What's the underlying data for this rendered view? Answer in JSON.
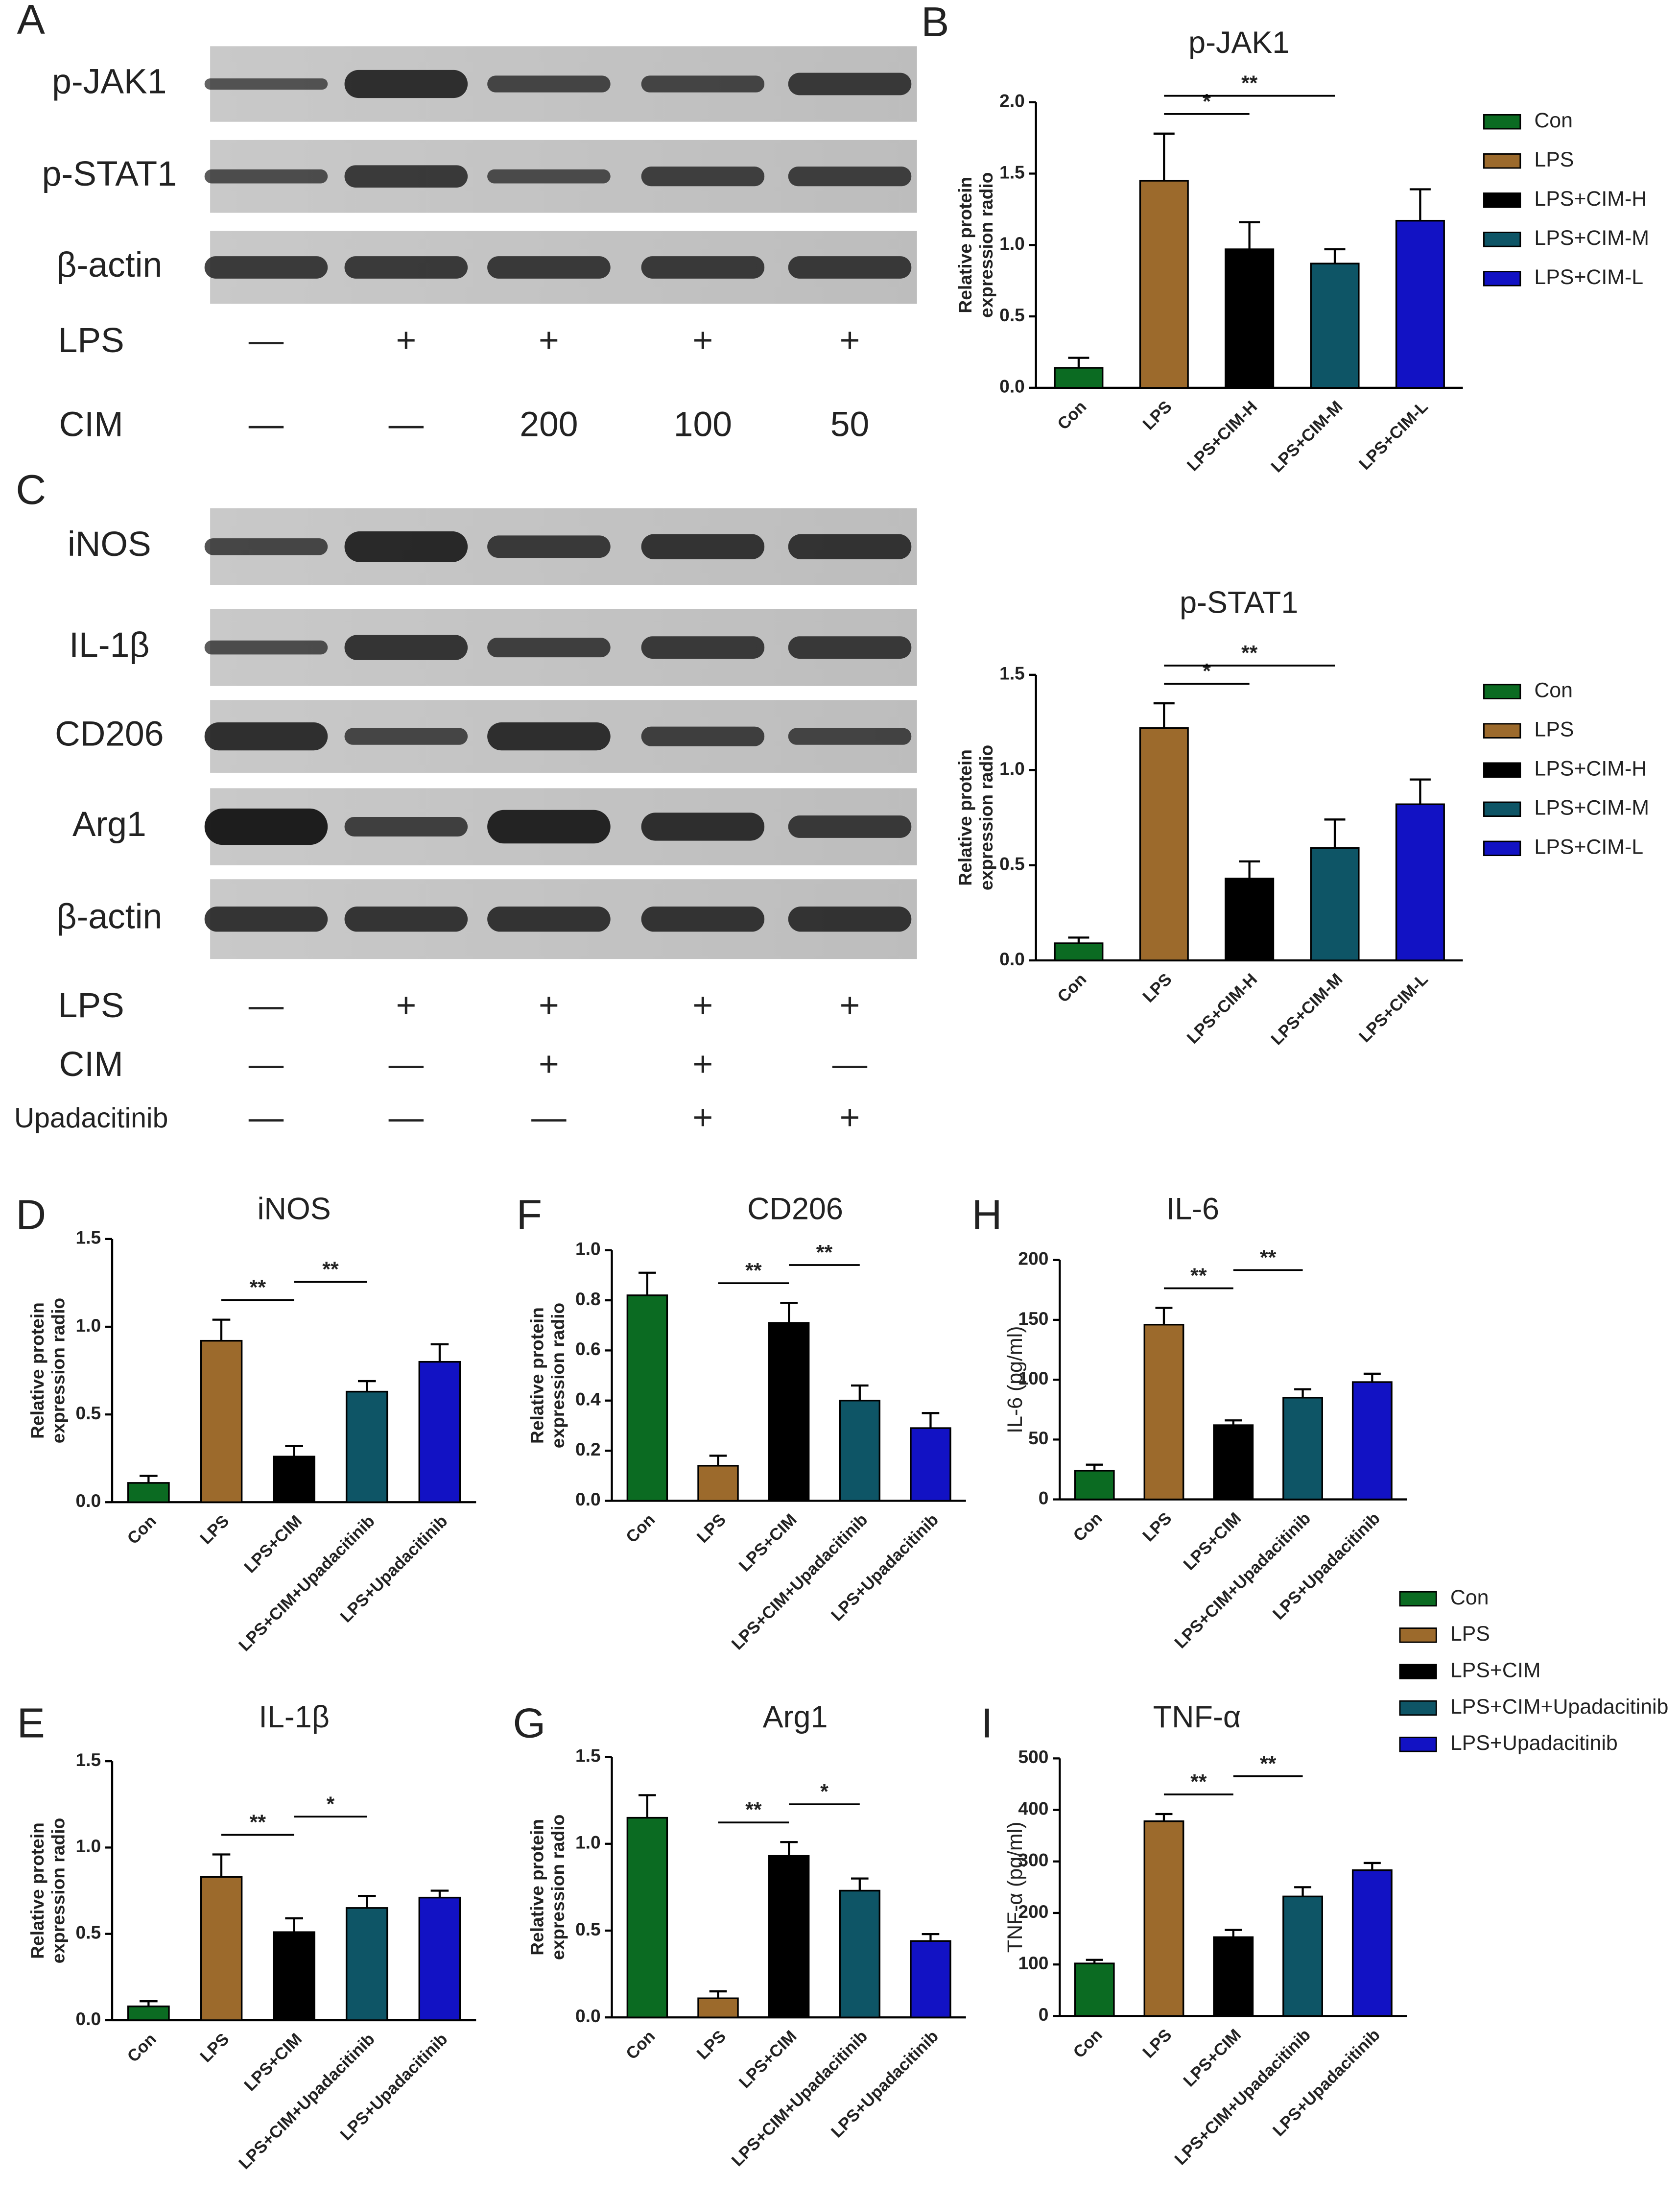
{
  "blots": [
    {
      "letter": "A",
      "rows": [
        "p-JAK1",
        "p-STAT1",
        "β-actin"
      ],
      "conditions": [
        {
          "label": "LPS",
          "lanes": [
            "—",
            "+",
            "+",
            "+",
            "+"
          ]
        },
        {
          "label": "CIM",
          "lanes": [
            "—",
            "—",
            "200",
            "100",
            "50"
          ]
        }
      ]
    },
    {
      "letter": "C",
      "rows": [
        "iNOS",
        "IL-1β",
        "CD206",
        "Arg1",
        "β-actin"
      ],
      "conditions": [
        {
          "label": "LPS",
          "lanes": [
            "—",
            "+",
            "+",
            "+",
            "+"
          ]
        },
        {
          "label": "CIM",
          "lanes": [
            "—",
            "—",
            "+",
            "+",
            "—"
          ]
        },
        {
          "label": "Upadacitinib",
          "lanes": [
            "—",
            "—",
            "—",
            "+",
            "+"
          ]
        }
      ]
    }
  ],
  "chart_data": [
    {
      "type": "bar",
      "letter": "B",
      "title": "p-JAK1",
      "ylabel": [
        "Relative protein",
        "expression radio"
      ],
      "categories": [
        "Con",
        "LPS",
        "LPS+CIM-H",
        "LPS+CIM-M",
        "LPS+CIM-L"
      ],
      "values": [
        0.14,
        1.45,
        0.97,
        0.87,
        1.17
      ],
      "errors": [
        0.07,
        0.33,
        0.19,
        0.1,
        0.22
      ],
      "colors": [
        "#0b6b22",
        "#9c6a2c",
        "#000000",
        "#0e5566",
        "#1212c4"
      ],
      "ylim": [
        0,
        2
      ],
      "yticks": [
        {
          "value": 0,
          "label": "0.0"
        },
        0.5,
        {
          "value": 1,
          "label": "1.0"
        },
        1.5,
        {
          "value": 2,
          "label": "2.0"
        }
      ],
      "annotations": [
        {
          "from": 1,
          "to": 2,
          "label": "*"
        },
        {
          "from": 1,
          "to": 3,
          "label": "**"
        }
      ],
      "legend": true
    },
    {
      "type": "bar",
      "title": "p-STAT1",
      "ylabel": [
        "Relative protein",
        "expression radio"
      ],
      "categories": [
        "Con",
        "LPS",
        "LPS+CIM-H",
        "LPS+CIM-M",
        "LPS+CIM-L"
      ],
      "values": [
        0.09,
        1.22,
        0.43,
        0.59,
        0.82
      ],
      "errors": [
        0.03,
        0.13,
        0.09,
        0.15,
        0.13
      ],
      "colors": [
        "#0b6b22",
        "#9c6a2c",
        "#000000",
        "#0e5566",
        "#1212c4"
      ],
      "ylim": [
        0,
        1.5
      ],
      "yticks": [
        {
          "value": 0,
          "label": "0.0"
        },
        0.5,
        {
          "value": 1,
          "label": "1.0"
        },
        1.5
      ],
      "annotations": [
        {
          "from": 1,
          "to": 2,
          "label": "*"
        },
        {
          "from": 1,
          "to": 3,
          "label": "**"
        }
      ],
      "legend": true
    },
    {
      "type": "bar",
      "letter": "D",
      "title": "iNOS",
      "ylabel": [
        "Relative protein",
        "expression radio"
      ],
      "categories": [
        "Con",
        "LPS",
        "LPS+CIM",
        "LPS+CIM+Upadacitinib",
        "LPS+Upadacitinib"
      ],
      "values": [
        0.11,
        0.92,
        0.26,
        0.63,
        0.8
      ],
      "errors": [
        0.04,
        0.12,
        0.06,
        0.06,
        0.1
      ],
      "colors": [
        "#0b6b22",
        "#9c6a2c",
        "#000000",
        "#0e5566",
        "#1212c4"
      ],
      "ylim": [
        0,
        1.5
      ],
      "yticks": [
        {
          "value": 0,
          "label": "0.0"
        },
        0.5,
        {
          "value": 1,
          "label": "1.0"
        },
        1.5
      ],
      "annotations": [
        {
          "from": 1,
          "to": 2,
          "label": "**"
        },
        {
          "from": 2,
          "to": 3,
          "label": "**"
        }
      ]
    },
    {
      "type": "bar",
      "letter": "F",
      "title": "CD206",
      "ylabel": [
        "Relative protein",
        "expression radio"
      ],
      "categories": [
        "Con",
        "LPS",
        "LPS+CIM",
        "LPS+CIM+Upadacitinib",
        "LPS+Upadacitinib"
      ],
      "values": [
        0.82,
        0.14,
        0.71,
        0.4,
        0.29
      ],
      "errors": [
        0.09,
        0.04,
        0.08,
        0.06,
        0.06
      ],
      "colors": [
        "#0b6b22",
        "#9c6a2c",
        "#000000",
        "#0e5566",
        "#1212c4"
      ],
      "ylim": [
        0,
        1
      ],
      "yticks": [
        {
          "value": 0,
          "label": "0.0"
        },
        0.2,
        0.4,
        0.6,
        0.8,
        {
          "value": 1,
          "label": "1.0"
        }
      ],
      "annotations": [
        {
          "from": 1,
          "to": 2,
          "label": "**"
        },
        {
          "from": 2,
          "to": 3,
          "label": "**"
        }
      ]
    },
    {
      "type": "bar",
      "letter": "H",
      "title": "IL-6",
      "ylabel": [
        "IL-6 (pg/ml)"
      ],
      "categories": [
        "Con",
        "LPS",
        "LPS+CIM",
        "LPS+CIM+Upadacitinib",
        "LPS+Upadacitinib"
      ],
      "values": [
        24,
        146,
        62,
        85,
        98
      ],
      "errors": [
        5,
        14,
        4,
        7,
        7
      ],
      "colors": [
        "#0b6b22",
        "#9c6a2c",
        "#000000",
        "#0e5566",
        "#1212c4"
      ],
      "ylim": [
        0,
        200
      ],
      "yticks": [
        0,
        50,
        100,
        150,
        200
      ],
      "annotations": [
        {
          "from": 1,
          "to": 2,
          "label": "**"
        },
        {
          "from": 2,
          "to": 3,
          "label": "**"
        }
      ]
    },
    {
      "type": "bar",
      "letter": "E",
      "title": "IL-1β",
      "ylabel": [
        "Relative protein",
        "expression radio"
      ],
      "categories": [
        "Con",
        "LPS",
        "LPS+CIM",
        "LPS+CIM+Upadacitinib",
        "LPS+Upadacitinib"
      ],
      "values": [
        0.08,
        0.83,
        0.51,
        0.65,
        0.71
      ],
      "errors": [
        0.03,
        0.13,
        0.08,
        0.07,
        0.04
      ],
      "colors": [
        "#0b6b22",
        "#9c6a2c",
        "#000000",
        "#0e5566",
        "#1212c4"
      ],
      "ylim": [
        0,
        1.5
      ],
      "yticks": [
        {
          "value": 0,
          "label": "0.0"
        },
        0.5,
        {
          "value": 1,
          "label": "1.0"
        },
        1.5
      ],
      "annotations": [
        {
          "from": 1,
          "to": 2,
          "label": "**"
        },
        {
          "from": 2,
          "to": 3,
          "label": "*"
        }
      ]
    },
    {
      "type": "bar",
      "letter": "G",
      "title": "Arg1",
      "ylabel": [
        "Relative protein",
        "expression radio"
      ],
      "categories": [
        "Con",
        "LPS",
        "LPS+CIM",
        "LPS+CIM+Upadacitinib",
        "LPS+Upadacitinib"
      ],
      "values": [
        1.15,
        0.11,
        0.93,
        0.73,
        0.44
      ],
      "errors": [
        0.13,
        0.04,
        0.08,
        0.07,
        0.04
      ],
      "colors": [
        "#0b6b22",
        "#9c6a2c",
        "#000000",
        "#0e5566",
        "#1212c4"
      ],
      "ylim": [
        0,
        1.5
      ],
      "yticks": [
        {
          "value": 0,
          "label": "0.0"
        },
        0.5,
        {
          "value": 1,
          "label": "1.0"
        },
        1.5
      ],
      "annotations": [
        {
          "from": 1,
          "to": 2,
          "label": "**"
        },
        {
          "from": 2,
          "to": 3,
          "label": "*"
        }
      ]
    },
    {
      "type": "bar",
      "letter": "I",
      "title": "TNF-α",
      "ylabel": [
        "TNF-α (pg/ml)"
      ],
      "categories": [
        "Con",
        "LPS",
        "LPS+CIM",
        "LPS+CIM+Upadacitinib",
        "LPS+Upadacitinib"
      ],
      "values": [
        102,
        378,
        153,
        232,
        283
      ],
      "errors": [
        7,
        14,
        14,
        18,
        14
      ],
      "colors": [
        "#0b6b22",
        "#9c6a2c",
        "#000000",
        "#0e5566",
        "#1212c4"
      ],
      "ylim": [
        0,
        500
      ],
      "yticks": [
        0,
        100,
        200,
        300,
        400,
        500
      ],
      "annotations": [
        {
          "from": 1,
          "to": 2,
          "label": "**"
        },
        {
          "from": 2,
          "to": 3,
          "label": "**"
        }
      ],
      "legend": true
    }
  ]
}
